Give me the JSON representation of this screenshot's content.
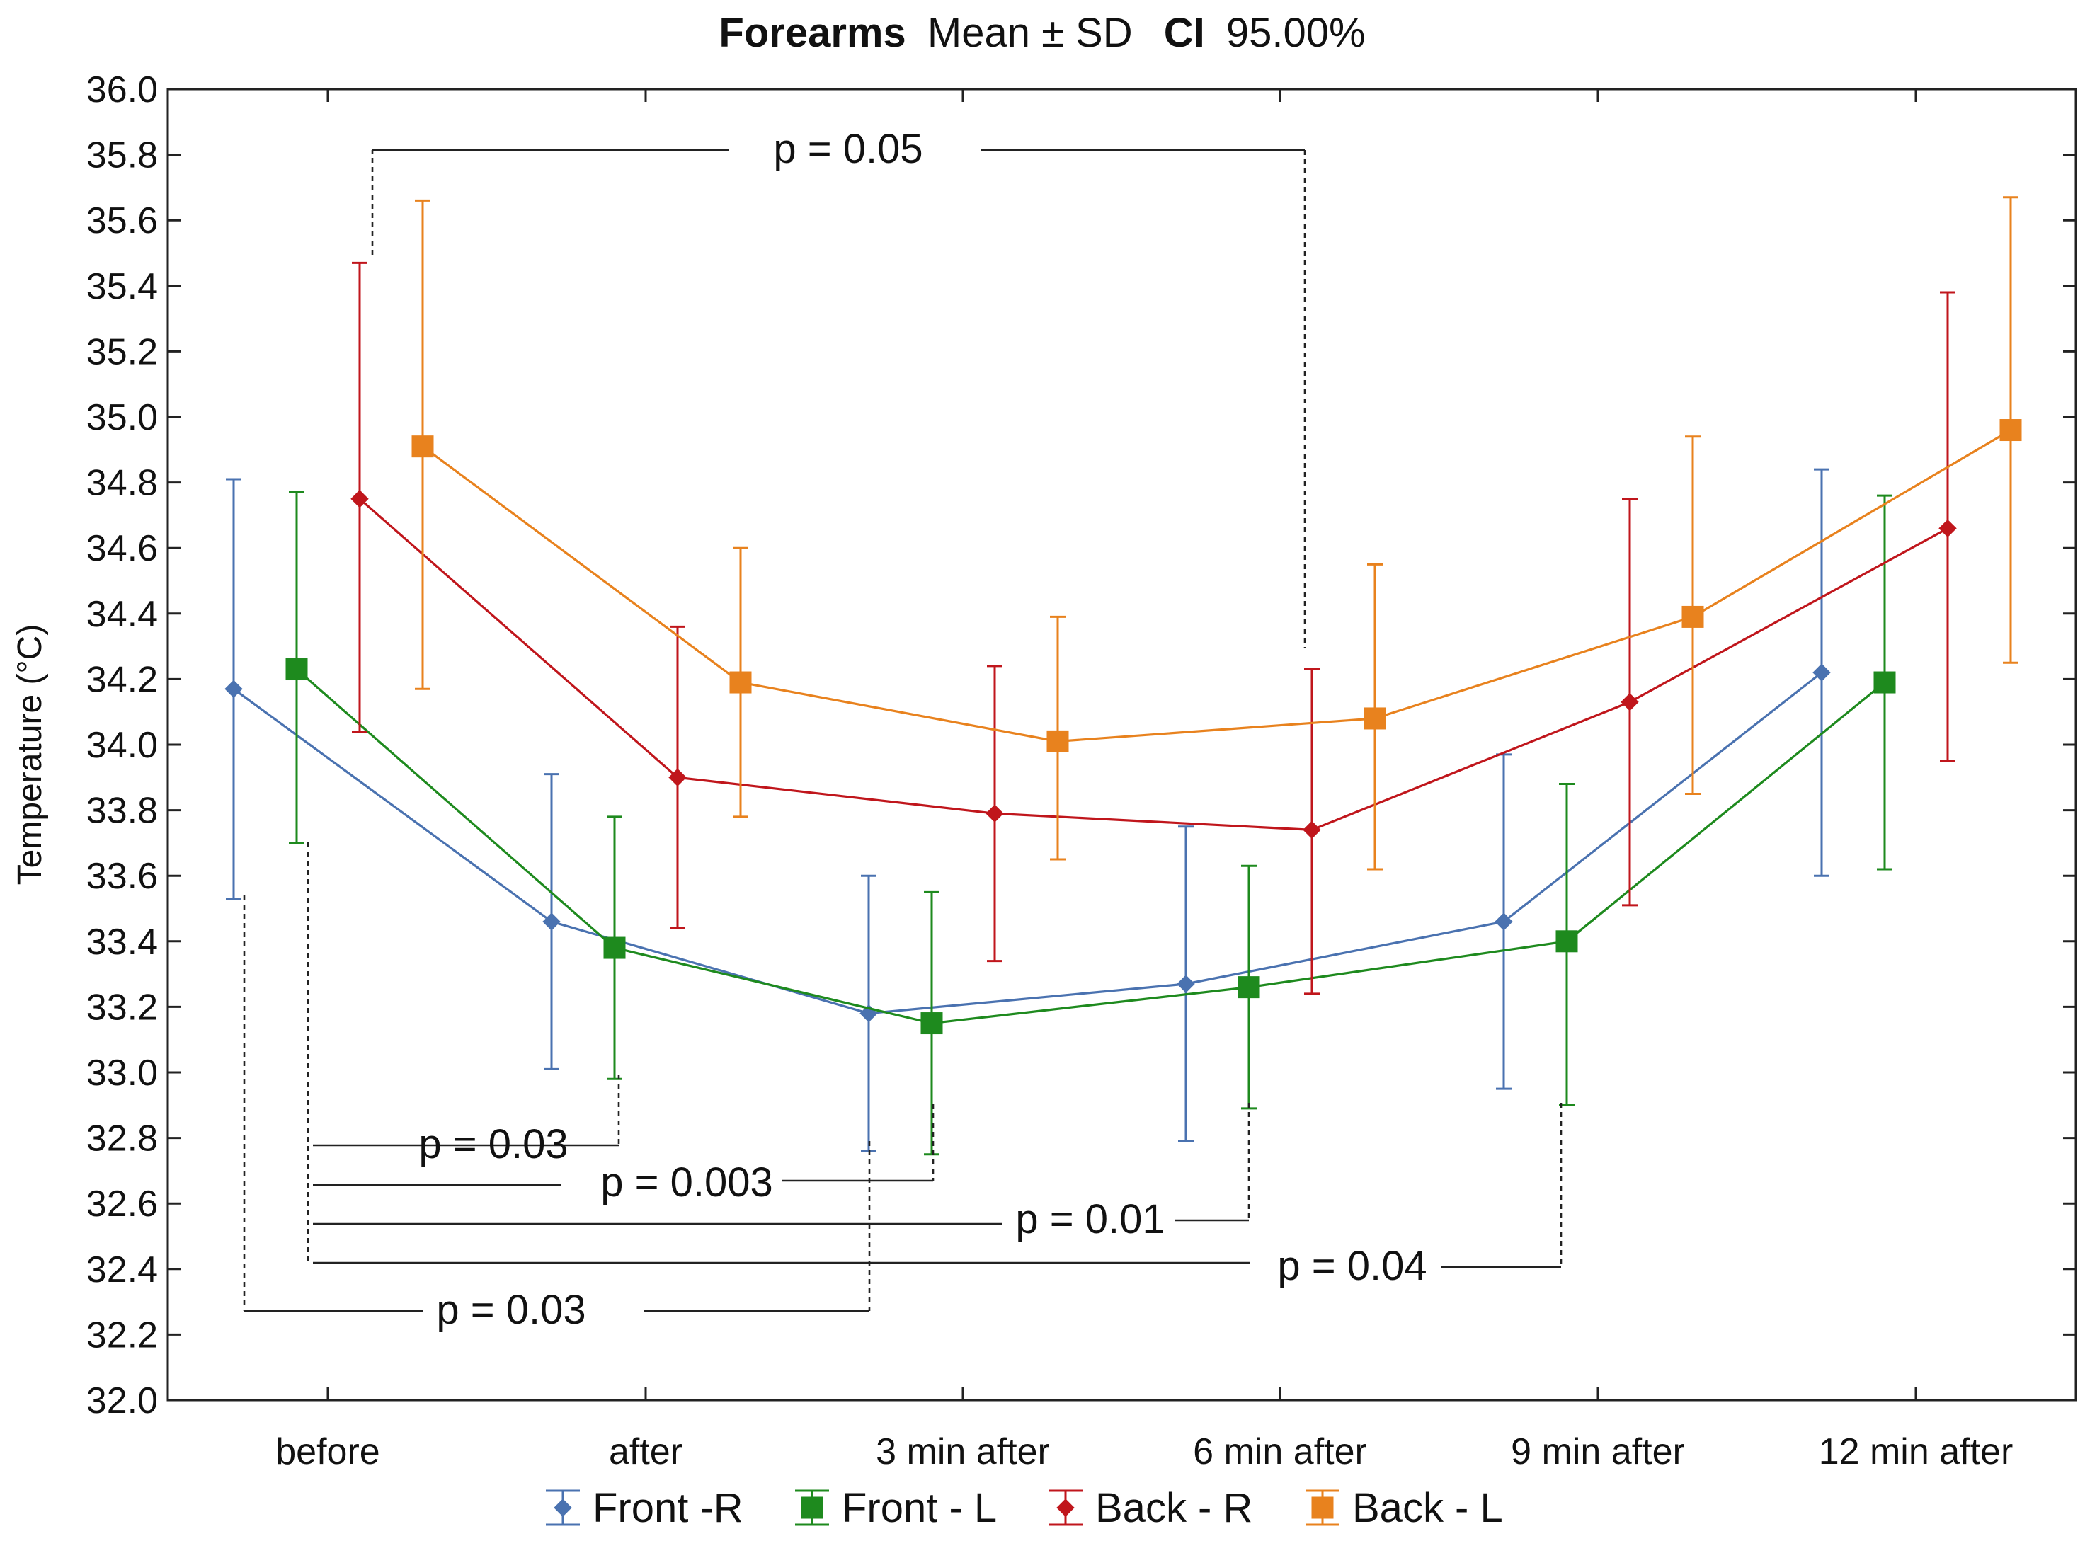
{
  "chart_data": {
    "type": "line",
    "title": {
      "bold_1": "Forearms",
      "normal_1": "Mean ± SD",
      "bold_2": "CI",
      "normal_2": "95.00%"
    },
    "xlabel": "",
    "ylabel": "Temperature (°C)",
    "ylim": [
      32.0,
      36.0
    ],
    "yticks": [
      "32.0",
      "32.2",
      "32.4",
      "32.6",
      "32.8",
      "33.0",
      "33.2",
      "33.4",
      "33.6",
      "33.8",
      "34.0",
      "34.2",
      "34.4",
      "34.6",
      "34.8",
      "35.0",
      "35.2",
      "35.4",
      "35.6",
      "35.8",
      "36.0"
    ],
    "categories": [
      "before",
      "after",
      "3 min after",
      "6 min after",
      "9 min after",
      "12 min after"
    ],
    "grid": false,
    "legend_position": "bottom",
    "series": [
      {
        "name": "Front -R",
        "color": "#4a72b0",
        "marker": "diamond",
        "mean": [
          34.17,
          33.46,
          33.18,
          33.27,
          33.46,
          34.22
        ],
        "upper": [
          34.81,
          33.91,
          33.6,
          33.75,
          33.97,
          34.84
        ],
        "lower": [
          33.53,
          33.01,
          32.76,
          32.79,
          32.95,
          33.6
        ]
      },
      {
        "name": "Front - L",
        "color": "#1e8a1e",
        "marker": "square",
        "mean": [
          34.23,
          33.38,
          33.15,
          33.26,
          33.4,
          34.19
        ],
        "upper": [
          34.77,
          33.78,
          33.55,
          33.63,
          33.88,
          34.76
        ],
        "lower": [
          33.7,
          32.98,
          32.75,
          32.89,
          32.9,
          33.62
        ]
      },
      {
        "name": "Back - R",
        "color": "#c0161c",
        "marker": "diamond",
        "mean": [
          34.75,
          33.9,
          33.79,
          33.74,
          34.13,
          34.66
        ],
        "upper": [
          35.47,
          34.36,
          34.24,
          34.23,
          34.75,
          35.38
        ],
        "lower": [
          34.04,
          33.44,
          33.34,
          33.24,
          33.51,
          33.95
        ]
      },
      {
        "name": "Back - L",
        "color": "#e8821e",
        "marker": "square",
        "mean": [
          34.91,
          34.19,
          34.01,
          34.08,
          34.39,
          34.96
        ],
        "upper": [
          35.66,
          34.6,
          34.39,
          34.55,
          34.94,
          35.67
        ],
        "lower": [
          34.17,
          33.78,
          33.65,
          33.62,
          33.85,
          34.25
        ]
      }
    ],
    "annotations": [
      {
        "label": "p = 0.05"
      },
      {
        "label": "p = 0.03"
      },
      {
        "label": "p = 0.003"
      },
      {
        "label": "p = 0.01"
      },
      {
        "label": "p = 0.04"
      },
      {
        "label": "p = 0.03"
      }
    ]
  }
}
